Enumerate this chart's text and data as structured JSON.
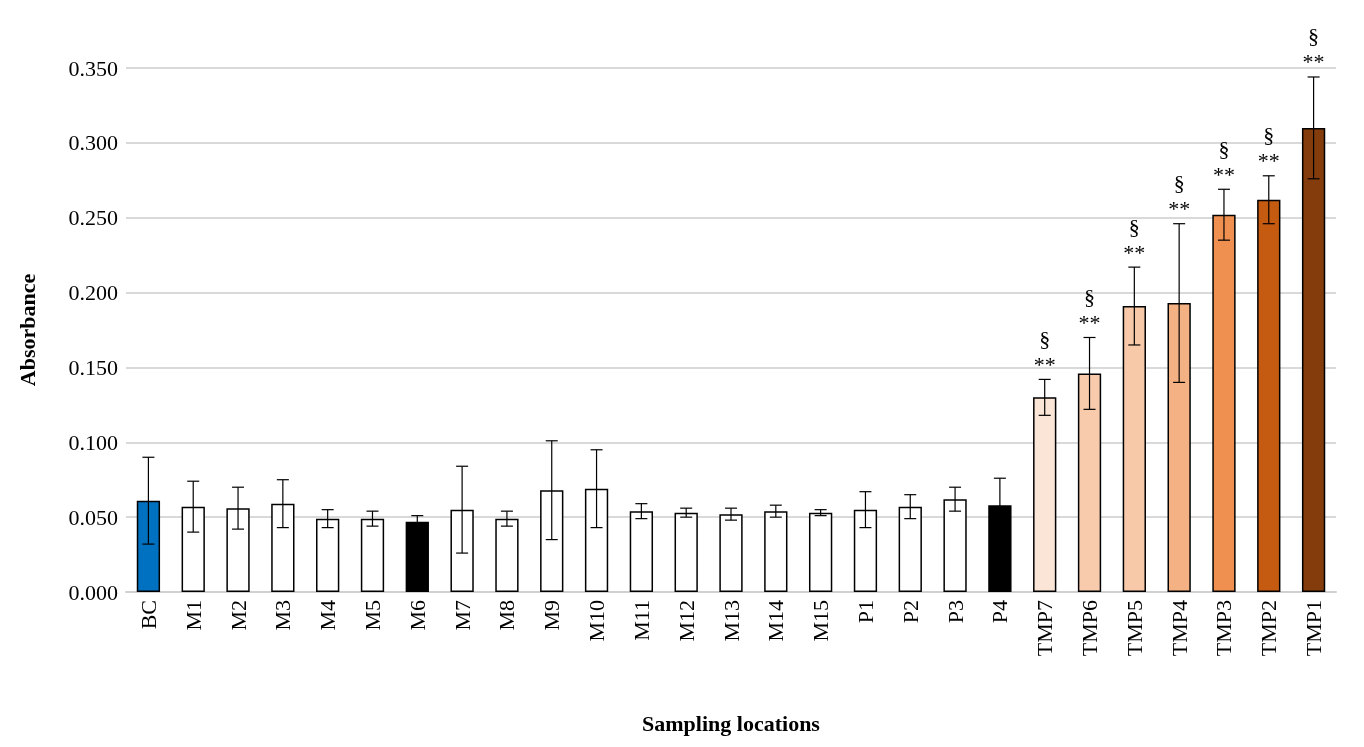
{
  "chart_data": {
    "type": "bar",
    "xlabel": "Sampling locations",
    "ylabel": "Absorbance",
    "categories": [
      "BC",
      "M1",
      "M2",
      "M3",
      "M4",
      "M5",
      "M6",
      "M7",
      "M8",
      "M9",
      "M10",
      "M11",
      "M12",
      "M13",
      "M14",
      "M15",
      "P1",
      "P2",
      "P3",
      "P4",
      "TMP7",
      "TMP6",
      "TMP5",
      "TMP4",
      "TMP3",
      "TMP2",
      "TMP1"
    ],
    "values": [
      0.061,
      0.057,
      0.056,
      0.059,
      0.049,
      0.049,
      0.047,
      0.055,
      0.049,
      0.068,
      0.069,
      0.054,
      0.053,
      0.052,
      0.054,
      0.053,
      0.055,
      0.057,
      0.062,
      0.058,
      0.13,
      0.146,
      0.191,
      0.193,
      0.252,
      0.262,
      0.31
    ],
    "errors": [
      0.029,
      0.017,
      0.014,
      0.016,
      0.006,
      0.005,
      0.004,
      0.029,
      0.005,
      0.033,
      0.026,
      0.005,
      0.003,
      0.004,
      0.004,
      0.002,
      0.012,
      0.008,
      0.008,
      0.018,
      0.012,
      0.024,
      0.026,
      0.053,
      0.017,
      0.016,
      0.034
    ],
    "colors": [
      "#0070c0",
      "#ffffff",
      "#ffffff",
      "#ffffff",
      "#ffffff",
      "#ffffff",
      "#000000",
      "#ffffff",
      "#ffffff",
      "#ffffff",
      "#ffffff",
      "#ffffff",
      "#ffffff",
      "#ffffff",
      "#ffffff",
      "#ffffff",
      "#ffffff",
      "#ffffff",
      "#ffffff",
      "#000000",
      "#fbe5d6",
      "#f8cbad",
      "#f7c9a8",
      "#f4b183",
      "#f09050",
      "#c55a11",
      "#843c0c"
    ],
    "ylim": [
      0,
      0.35
    ],
    "yticks": [
      {
        "value": 0,
        "label": "0.000"
      },
      {
        "value": 0.05,
        "label": "0.050"
      },
      {
        "value": 0.1,
        "label": "0.100"
      },
      {
        "value": 0.15,
        "label": "0.150"
      },
      {
        "value": 0.2,
        "label": "0.200"
      },
      {
        "value": 0.25,
        "label": "0.250"
      },
      {
        "value": 0.3,
        "label": "0.300"
      },
      {
        "value": 0.35,
        "label": "0.350"
      }
    ],
    "grid": "y",
    "annotations": [
      {
        "text": "§\n**",
        "x": "TMP7",
        "y": 0.142
      },
      {
        "text": "§\n**",
        "x": "TMP6",
        "y": 0.17
      },
      {
        "text": "§\n**",
        "x": "TMP5",
        "y": 0.217
      },
      {
        "text": "§\n**",
        "x": "TMP4",
        "y": 0.246
      },
      {
        "text": "§\n**",
        "x": "TMP3",
        "y": 0.269
      },
      {
        "text": "§\n**",
        "x": "TMP2",
        "y": 0.278
      },
      {
        "text": "§\n**",
        "x": "TMP1",
        "y": 0.344
      }
    ]
  }
}
